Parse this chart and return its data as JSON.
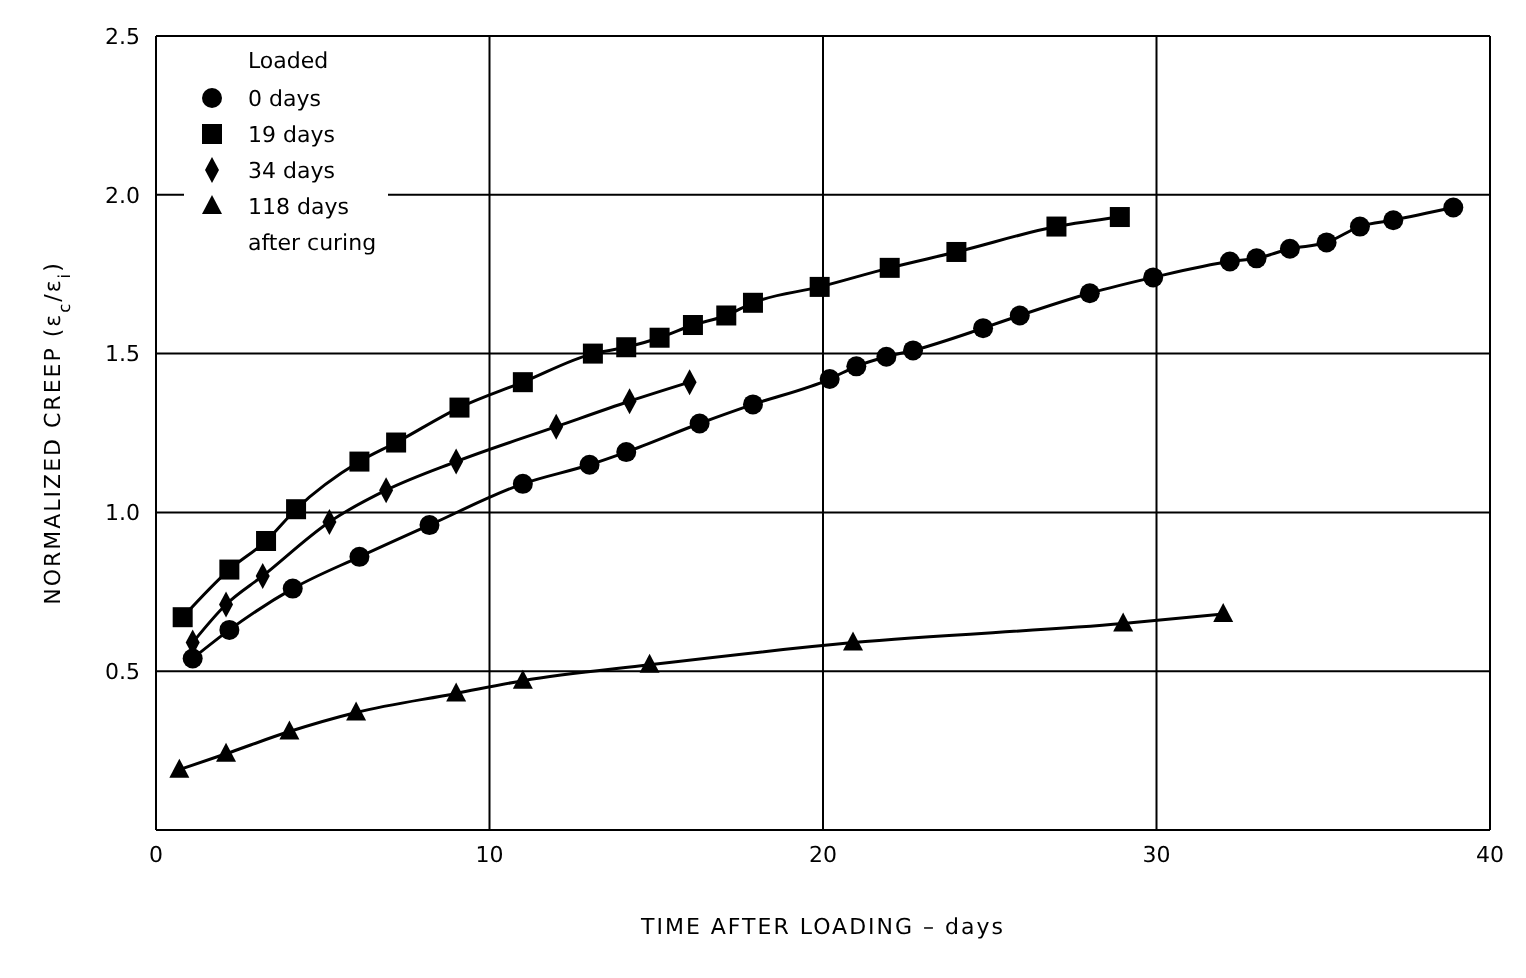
{
  "chart_data": {
    "type": "line",
    "xlabel": "TIME AFTER LOADING – days",
    "ylabel": "NORMALIZED CREEP (ε$_{c}$/ε$_{i}$)",
    "legend_title": "Loaded",
    "legend": "top left",
    "annotations": [
      "after curing"
    ],
    "grid": true,
    "line_style": "solid",
    "xlim": [
      0,
      40
    ],
    "xticks": [
      0,
      10,
      20,
      30,
      40
    ],
    "ylim": [
      0,
      2.5
    ],
    "yticks": [
      0.5,
      {
        "value": 1,
        "label": "1.0"
      },
      1.5,
      {
        "value": 2,
        "label": "2.0"
      },
      2.5
    ],
    "series": [
      {
        "name": "0 days",
        "color": "#000000",
        "marker": "circle",
        "x": [
          1.1,
          2.2,
          4.1,
          6.1,
          8.2,
          11.0,
          13.0,
          14.1,
          16.3,
          17.9,
          20.2,
          21.0,
          21.9,
          22.7,
          24.8,
          25.9,
          28.0,
          29.9,
          32.2,
          33.0,
          34.0,
          35.1,
          36.1,
          37.1,
          38.9
        ],
        "values": [
          0.54,
          0.63,
          0.76,
          0.86,
          0.96,
          1.09,
          1.15,
          1.19,
          1.28,
          1.34,
          1.42,
          1.46,
          1.49,
          1.51,
          1.58,
          1.62,
          1.69,
          1.74,
          1.79,
          1.8,
          1.83,
          1.85,
          1.9,
          1.92,
          1.96
        ]
      },
      {
        "name": "19 days",
        "color": "#000000",
        "marker": "square",
        "x": [
          0.8,
          2.2,
          3.3,
          4.2,
          6.1,
          7.2,
          9.1,
          11.0,
          13.1,
          14.1,
          15.1,
          16.1,
          17.1,
          17.9,
          19.9,
          22.0,
          24.0,
          27.0,
          28.9
        ],
        "values": [
          0.67,
          0.82,
          0.91,
          1.01,
          1.16,
          1.22,
          1.33,
          1.41,
          1.5,
          1.52,
          1.55,
          1.59,
          1.62,
          1.66,
          1.71,
          1.77,
          1.82,
          1.9,
          1.93
        ]
      },
      {
        "name": "34 days",
        "color": "#000000",
        "marker": "diamond",
        "x": [
          1.1,
          2.1,
          3.2,
          5.2,
          6.9,
          9.0,
          12.0,
          14.2,
          16.0
        ],
        "values": [
          0.59,
          0.71,
          0.8,
          0.97,
          1.07,
          1.16,
          1.27,
          1.35,
          1.41
        ]
      },
      {
        "name": "118 days",
        "color": "#000000",
        "marker": "triangle",
        "x": [
          0.7,
          2.1,
          4.0,
          6.0,
          9.0,
          11.0,
          14.8,
          20.9,
          29.0,
          32.0
        ],
        "values": [
          0.19,
          0.24,
          0.31,
          0.37,
          0.43,
          0.47,
          0.52,
          0.59,
          0.65,
          0.68
        ]
      }
    ]
  }
}
